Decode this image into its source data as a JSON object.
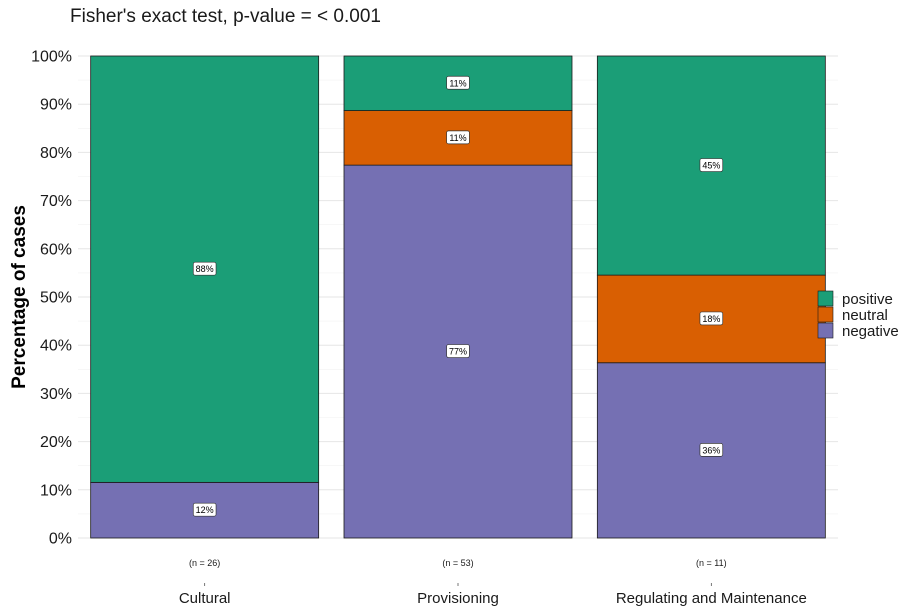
{
  "chart_data": {
    "type": "bar",
    "stacked": true,
    "percent": true,
    "title": "Fisher's exact test, p-value = < 0.001",
    "ylabel": "Percentage of cases",
    "xlabel": "",
    "ylim": [
      0,
      100
    ],
    "yticks": [
      "0%",
      "10%",
      "20%",
      "30%",
      "40%",
      "50%",
      "60%",
      "70%",
      "80%",
      "90%",
      "100%"
    ],
    "categories": [
      "Cultural",
      "Provisioning",
      "Regulating and Maintenance"
    ],
    "counts": [
      "(n = 26)",
      "(n = 53)",
      "(n = 11)"
    ],
    "grid": true,
    "legend_position": "right",
    "series": [
      {
        "name": "negative",
        "color": "#7570b3",
        "values": [
          11.54,
          77.36,
          36.36
        ],
        "labels": [
          "12%",
          "77%",
          "36%"
        ]
      },
      {
        "name": "neutral",
        "color": "#d95f02",
        "values": [
          0,
          11.32,
          18.18
        ],
        "labels": [
          "",
          "11%",
          "18%"
        ]
      },
      {
        "name": "positive",
        "color": "#1b9e77",
        "values": [
          88.46,
          11.32,
          45.46
        ],
        "labels": [
          "88%",
          "11%",
          "45%"
        ]
      }
    ],
    "legend_order": [
      "positive",
      "neutral",
      "negative"
    ]
  }
}
